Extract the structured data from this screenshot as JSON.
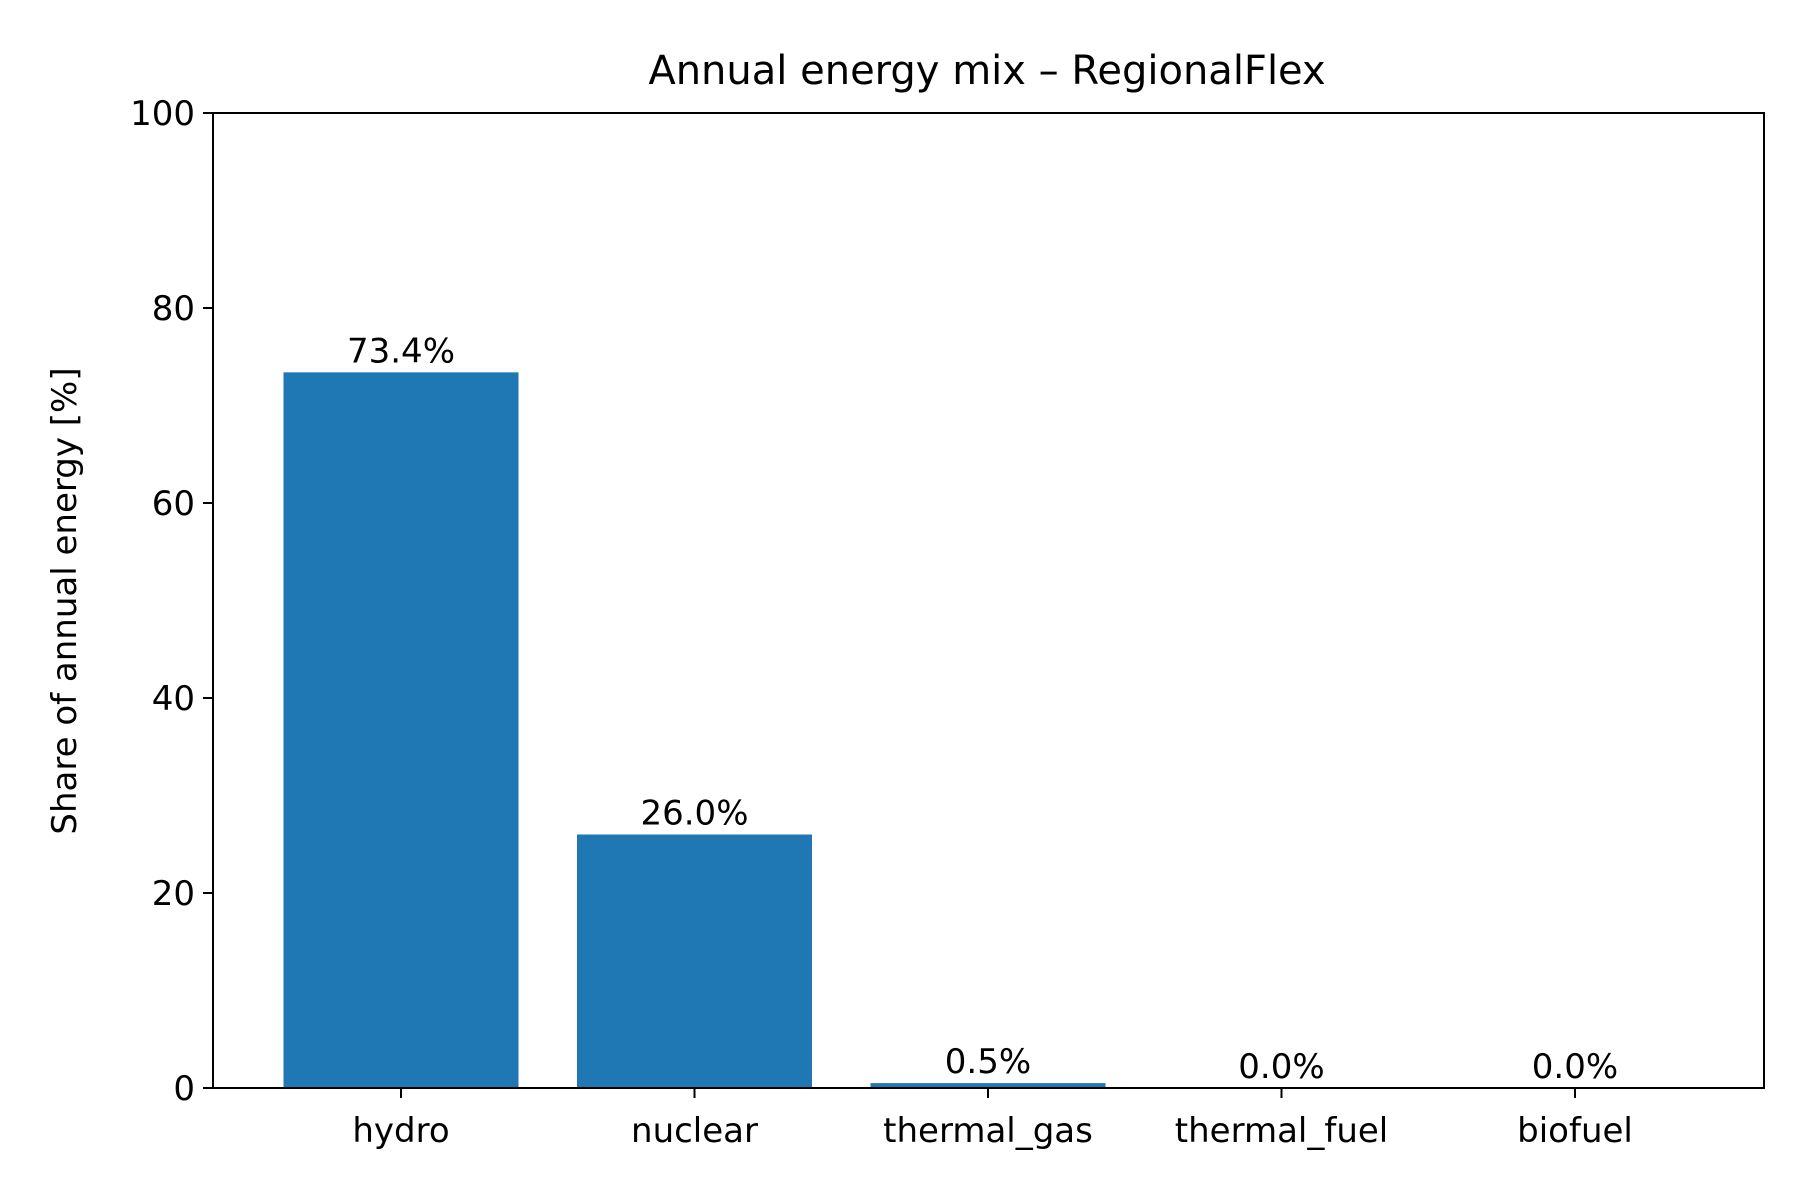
{
  "chart_data": {
    "type": "bar",
    "title": "Annual energy mix – RegionalFlex",
    "xlabel": "",
    "ylabel": "Share of annual energy [%]",
    "categories": [
      "hydro",
      "nuclear",
      "thermal_gas",
      "thermal_fuel",
      "biofuel"
    ],
    "values": [
      73.4,
      26.0,
      0.5,
      0.0,
      0.0
    ],
    "data_labels": [
      "73.4%",
      "26.0%",
      "0.5%",
      "0.0%",
      "0.0%"
    ],
    "ylim": [
      0,
      100
    ],
    "yticks": [
      "0",
      "20",
      "40",
      "60",
      "80",
      "100"
    ],
    "grid": false,
    "bar_color": "#1f77b4"
  }
}
